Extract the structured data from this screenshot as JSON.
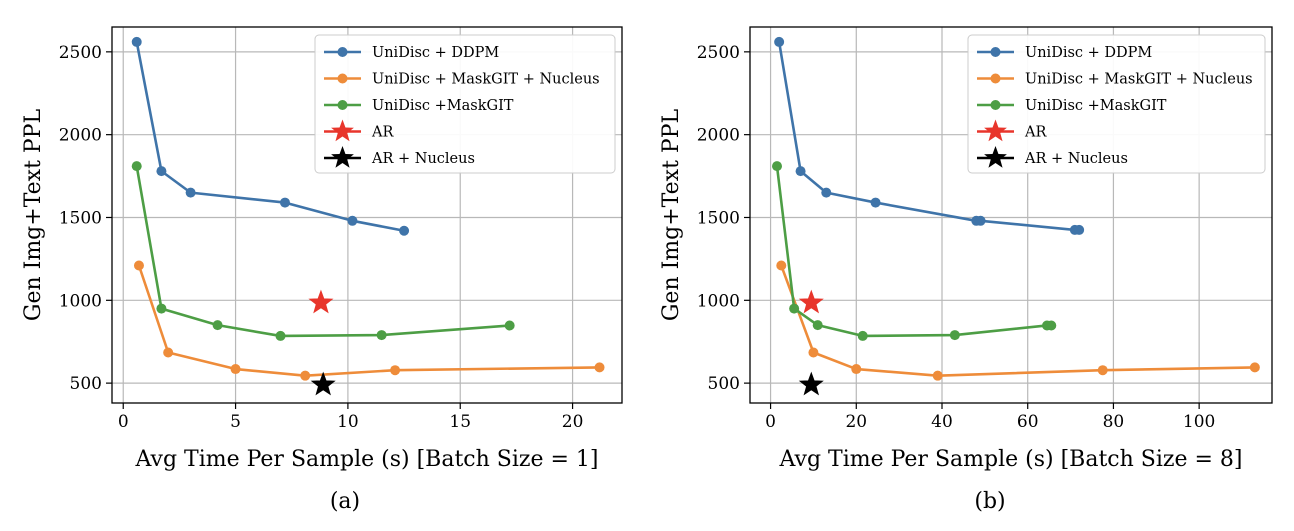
{
  "chart_data": [
    {
      "type": "line",
      "caption": "(a)",
      "xlabel": "Avg Time Per Sample (s) [Batch Size = 1]",
      "ylabel": "Gen Img+Text PPL",
      "xlim": [
        -0.5,
        22.2
      ],
      "ylim": [
        380,
        2650
      ],
      "xticks": [
        0,
        5,
        10,
        15,
        20
      ],
      "yticks": [
        500,
        1000,
        1500,
        2000,
        2500
      ],
      "grid": true,
      "legend": "top-right",
      "series": [
        {
          "name": "UniDisc + DDPM",
          "color": "#3f74a9",
          "marker": "dot",
          "points": [
            [
              0.6,
              2560
            ],
            [
              1.7,
              1780
            ],
            [
              3.0,
              1650
            ],
            [
              7.2,
              1590
            ],
            [
              10.2,
              1480
            ],
            [
              12.5,
              1420
            ]
          ]
        },
        {
          "name": "UniDisc + MaskGIT + Nucleus",
          "color": "#ee8c3a",
          "marker": "dot",
          "points": [
            [
              0.7,
              1210
            ],
            [
              2.0,
              685
            ],
            [
              5.0,
              585
            ],
            [
              8.1,
              545
            ],
            [
              12.1,
              578
            ],
            [
              21.2,
              595
            ]
          ]
        },
        {
          "name": "UniDisc +MaskGIT",
          "color": "#4d9e45",
          "marker": "dot",
          "points": [
            [
              0.6,
              1810
            ],
            [
              1.7,
              950
            ],
            [
              4.2,
              850
            ],
            [
              7.0,
              785
            ],
            [
              11.5,
              790
            ],
            [
              17.2,
              848
            ]
          ]
        },
        {
          "name": "AR",
          "color": "#e8352b",
          "marker": "star",
          "points": [
            [
              8.8,
              985
            ]
          ]
        },
        {
          "name": "AR + Nucleus",
          "color": "#000000",
          "marker": "star",
          "points": [
            [
              8.9,
              490
            ]
          ]
        }
      ]
    },
    {
      "type": "line",
      "caption": "(b)",
      "xlabel": "Avg Time Per Sample (s) [Batch Size = 8]",
      "ylabel": "Gen Img+Text PPL",
      "xlim": [
        -4.8,
        117
      ],
      "ylim": [
        380,
        2650
      ],
      "xticks": [
        0,
        20,
        40,
        60,
        80,
        100
      ],
      "yticks": [
        500,
        1000,
        1500,
        2000,
        2500
      ],
      "grid": true,
      "legend": "top-right",
      "series": [
        {
          "name": "UniDisc + DDPM",
          "color": "#3f74a9",
          "marker": "dot",
          "points": [
            [
              2.0,
              2560
            ],
            [
              7.0,
              1780
            ],
            [
              13.0,
              1650
            ],
            [
              24.5,
              1590
            ],
            [
              48.0,
              1480
            ],
            [
              49.0,
              1480
            ],
            [
              71.0,
              1425
            ],
            [
              72.0,
              1425
            ]
          ]
        },
        {
          "name": "UniDisc + MaskGIT + Nucleus",
          "color": "#ee8c3a",
          "marker": "dot",
          "points": [
            [
              2.5,
              1210
            ],
            [
              10.0,
              685
            ],
            [
              20.0,
              585
            ],
            [
              39.0,
              545
            ],
            [
              77.5,
              578
            ],
            [
              113.0,
              595
            ]
          ]
        },
        {
          "name": "UniDisc +MaskGIT",
          "color": "#4d9e45",
          "marker": "dot",
          "points": [
            [
              1.5,
              1810
            ],
            [
              5.5,
              950
            ],
            [
              11.0,
              850
            ],
            [
              21.5,
              785
            ],
            [
              43.0,
              790
            ],
            [
              64.5,
              848
            ],
            [
              65.5,
              848
            ]
          ]
        },
        {
          "name": "AR",
          "color": "#e8352b",
          "marker": "star",
          "points": [
            [
              9.5,
              985
            ]
          ]
        },
        {
          "name": "AR + Nucleus",
          "color": "#000000",
          "marker": "star",
          "points": [
            [
              9.5,
              490
            ]
          ]
        }
      ]
    }
  ]
}
